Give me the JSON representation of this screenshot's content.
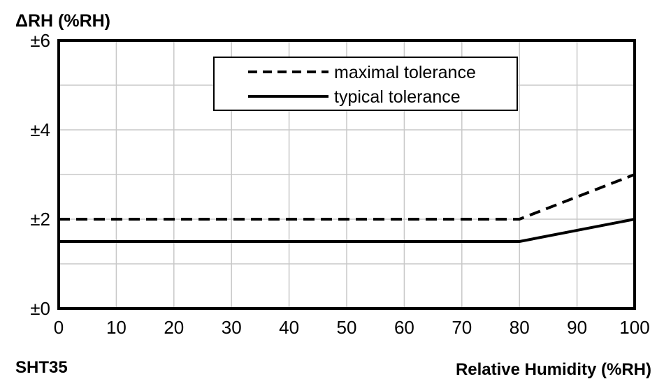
{
  "chart_data": {
    "type": "line",
    "ylabel": "ΔRH (%RH)",
    "xlabel": "Relative Humidity (%RH)",
    "sensor_label": "SHT35",
    "xlim": [
      0,
      100
    ],
    "ylim": [
      0,
      6
    ],
    "x_ticks": [
      0,
      10,
      20,
      30,
      40,
      50,
      60,
      70,
      80,
      90,
      100
    ],
    "x_tick_labels": [
      "0",
      "10",
      "20",
      "30",
      "40",
      "50",
      "60",
      "70",
      "80",
      "90",
      "100"
    ],
    "y_ticks": [
      0,
      2,
      4,
      6
    ],
    "y_tick_labels": [
      "±0",
      "±2",
      "±4",
      "±6"
    ],
    "grid": true,
    "legend_position": "top-right",
    "series": [
      {
        "name": "maximal tolerance",
        "style": "dashed",
        "color": "#000000",
        "x": [
          0,
          80,
          100
        ],
        "y": [
          2,
          2,
          3
        ]
      },
      {
        "name": "typical tolerance",
        "style": "solid",
        "color": "#000000",
        "x": [
          0,
          80,
          100
        ],
        "y": [
          1.5,
          1.5,
          2
        ]
      }
    ]
  }
}
